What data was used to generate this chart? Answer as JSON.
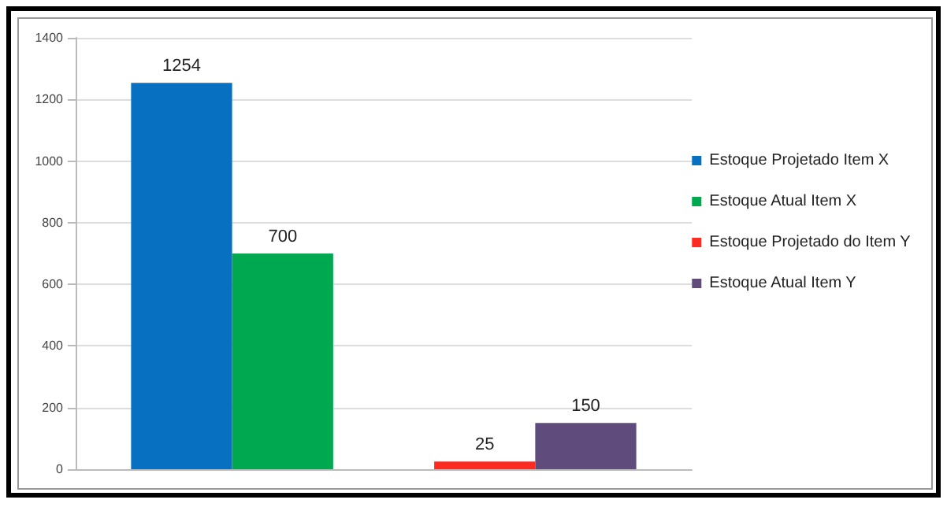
{
  "chart_data": {
    "type": "bar",
    "categories": [
      null
    ],
    "series": [
      {
        "name": "Estoque Projetado Item X",
        "color": "#0870c0",
        "values": [
          1254
        ]
      },
      {
        "name": "Estoque Atual Item X",
        "color": "#00a850",
        "values": [
          700
        ]
      },
      {
        "name": "Estoque Projetado do Item Y",
        "color": "#ff2a20",
        "values": [
          25
        ]
      },
      {
        "name": "Estoque Atual Item Y",
        "color": "#604c7c",
        "values": [
          150
        ]
      }
    ],
    "ylim": [
      0,
      1400
    ],
    "yticks": [
      0,
      200,
      400,
      600,
      800,
      1000,
      1200,
      1400
    ],
    "grid": "y",
    "legend": "right",
    "data_labels": true
  }
}
